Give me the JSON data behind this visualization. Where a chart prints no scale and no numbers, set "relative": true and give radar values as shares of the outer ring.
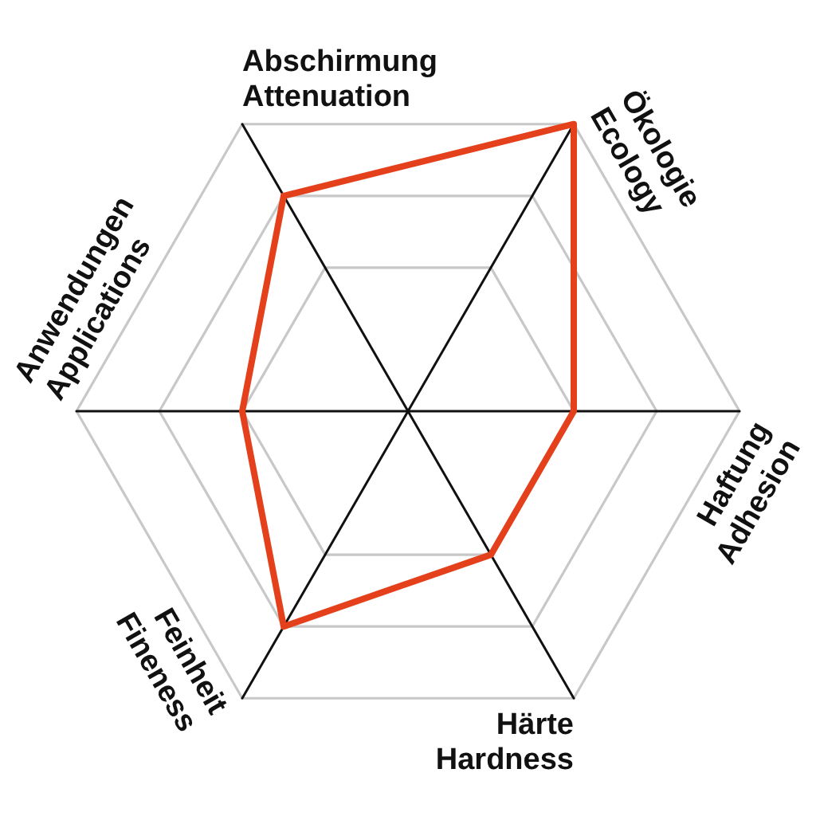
{
  "chart_data": {
    "type": "radar",
    "categories": [
      "Abschirmung\nAttenuation",
      "Ökologie\nEcology",
      "Haftung\nAdhesion",
      "Härte\nHardness",
      "Feinheit\nFineness",
      "Anwendungen\nApplications"
    ],
    "series": [
      {
        "color": "#e4401c",
        "values": [
          0.75,
          1,
          0.5,
          0.5,
          0.75,
          0.5
        ]
      }
    ],
    "relative": true,
    "grid": true,
    "marker": "none",
    "line_style": "solid"
  }
}
